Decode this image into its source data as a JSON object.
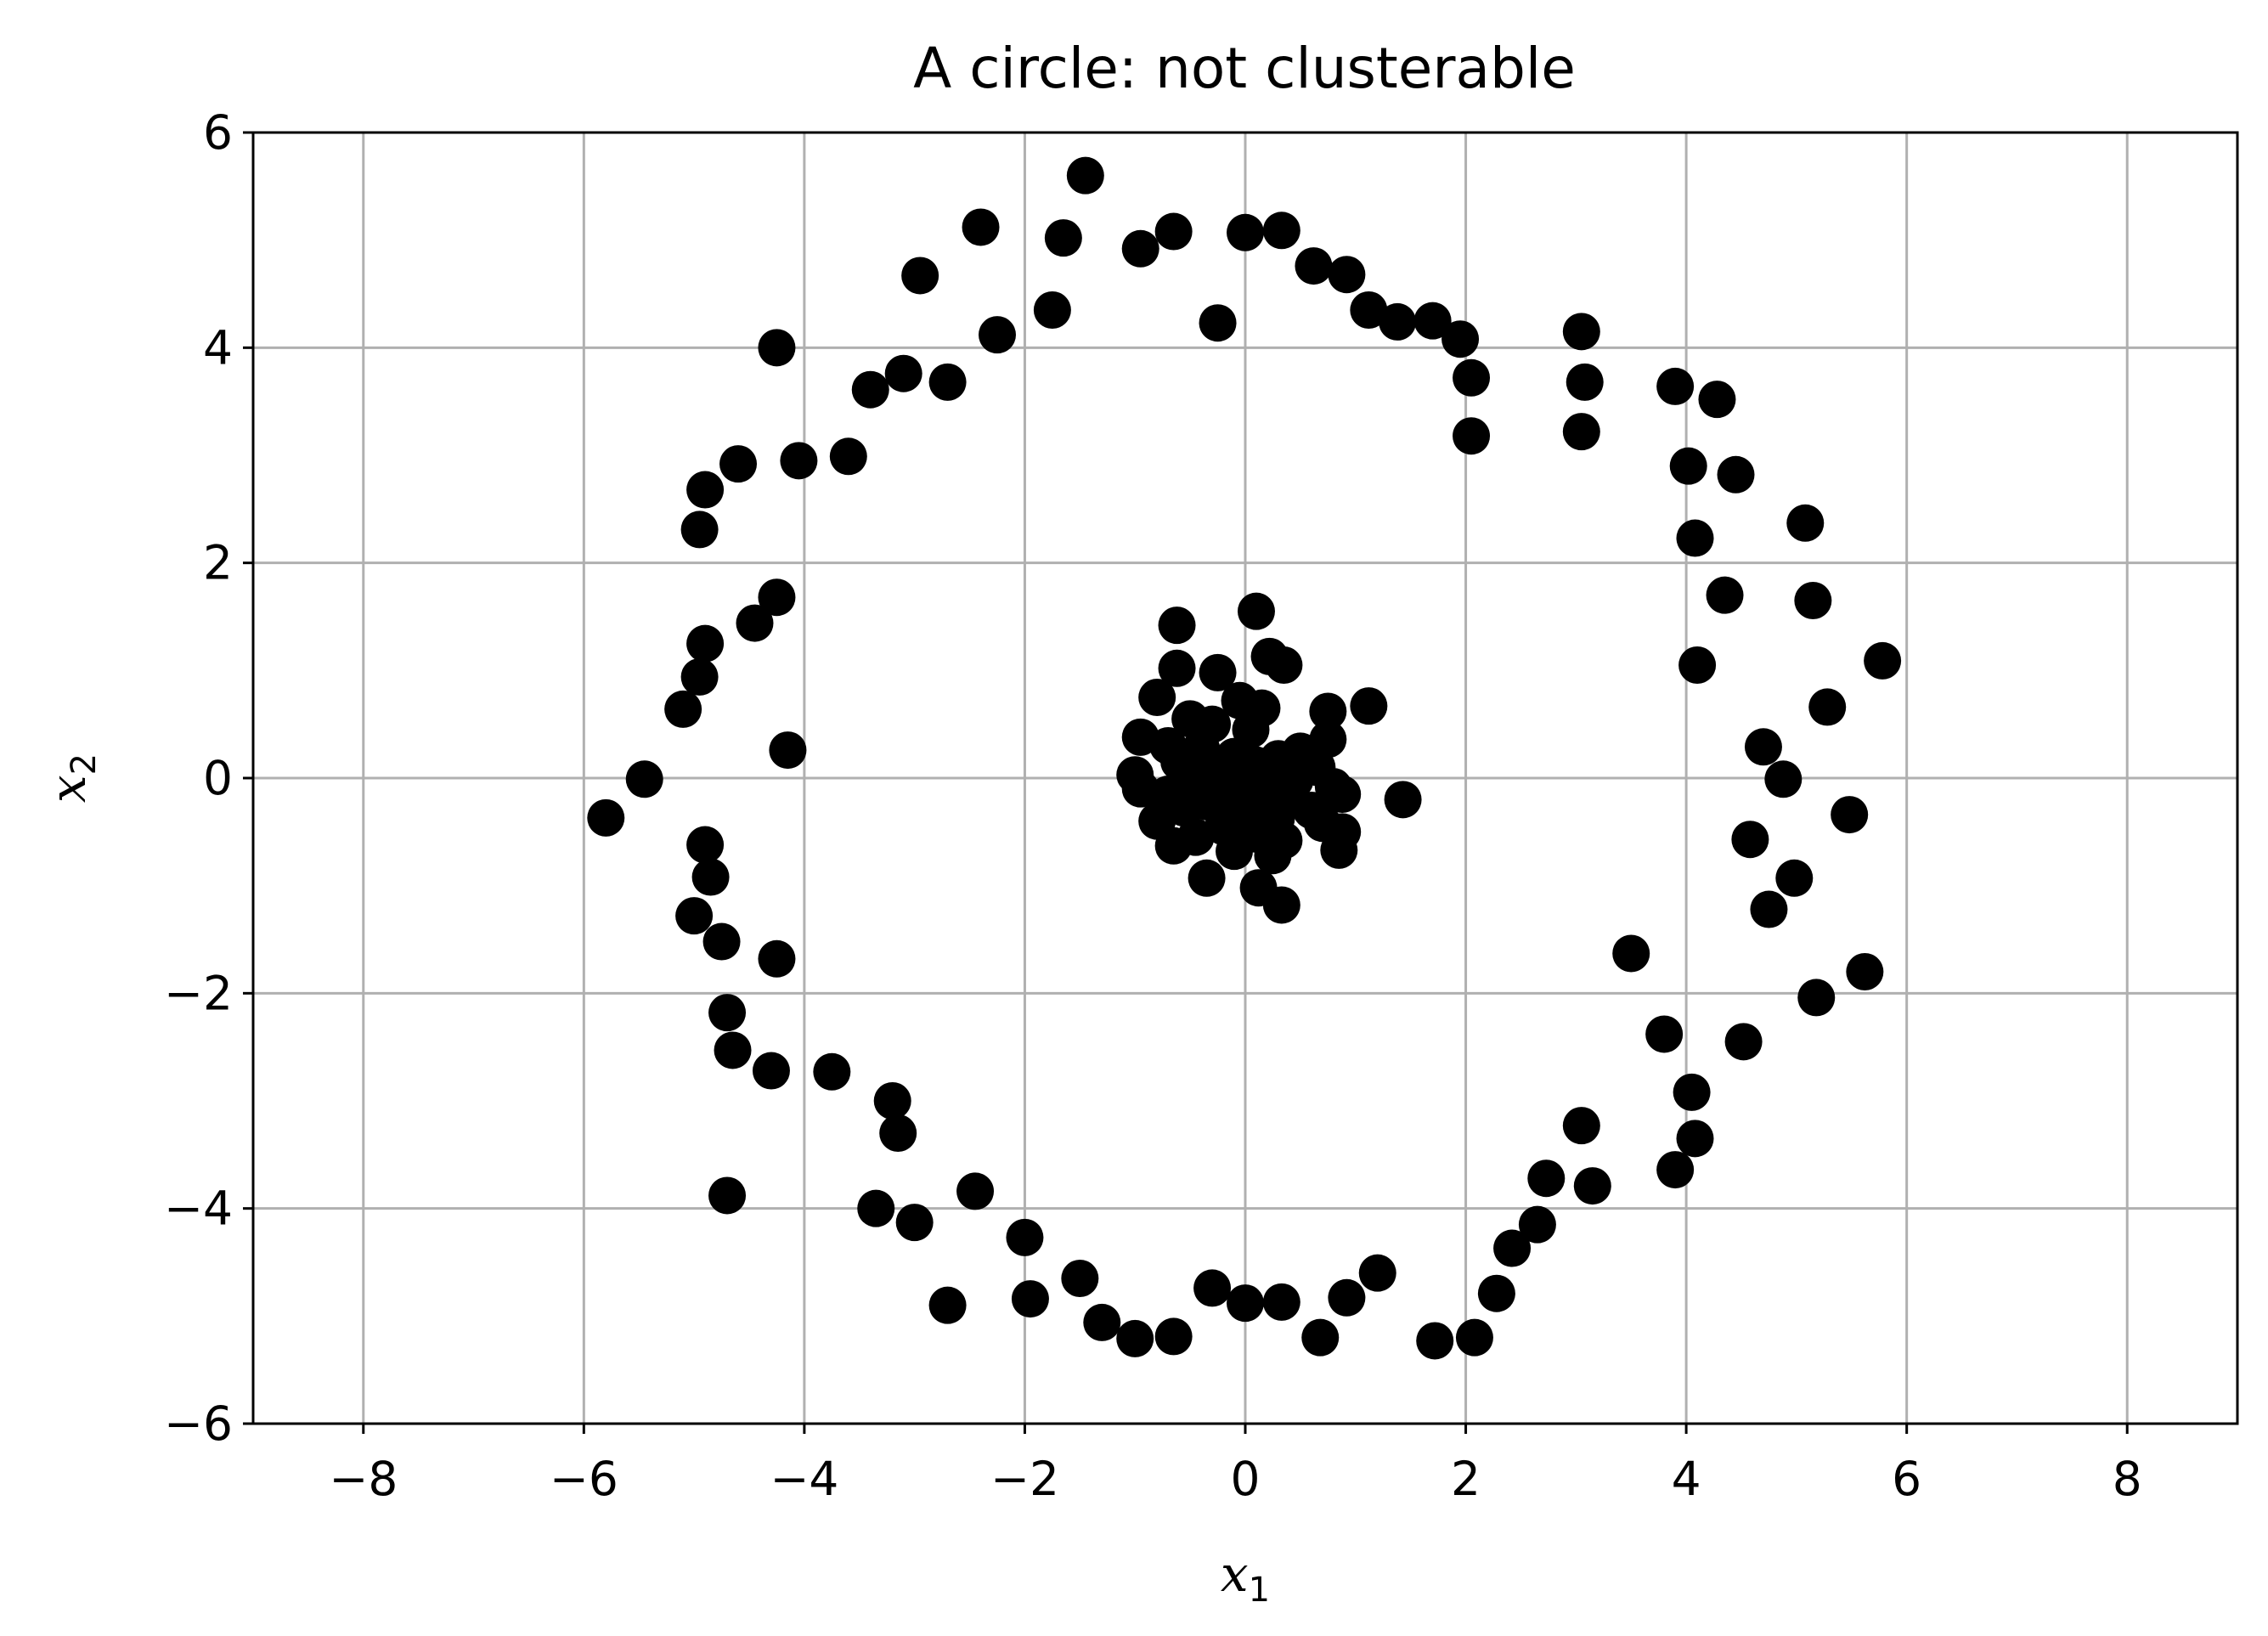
{
  "chart_data": {
    "type": "scatter",
    "title": "A circle: not clusterable",
    "xlabel": {
      "base": "x",
      "sub": "1"
    },
    "ylabel": {
      "base": "x",
      "sub": "2"
    },
    "xlim": [
      -9,
      9
    ],
    "ylim": [
      -6,
      6
    ],
    "xticks": [
      -8,
      -6,
      -4,
      -2,
      0,
      2,
      4,
      6,
      8
    ],
    "yticks": [
      -6,
      -4,
      -2,
      0,
      2,
      4,
      6
    ],
    "xtick_labels": [
      "−8",
      "−6",
      "−4",
      "−2",
      "0",
      "2",
      "4",
      "6",
      "8"
    ],
    "ytick_labels": [
      "−6",
      "−4",
      "−2",
      "0",
      "2",
      "4",
      "6"
    ],
    "grid": true,
    "marker_color": "#000000",
    "grid_color": "#b0b0b0",
    "series": [
      {
        "points": [
          [
            -1.45,
            5.6
          ],
          [
            -2.4,
            5.12
          ],
          [
            -1.65,
            5.02
          ],
          [
            -0.65,
            5.08
          ],
          [
            -0.95,
            4.92
          ],
          [
            0.0,
            5.07
          ],
          [
            0.33,
            5.09
          ],
          [
            -2.95,
            4.67
          ],
          [
            0.62,
            4.76
          ],
          [
            0.92,
            4.68
          ],
          [
            -1.75,
            4.35
          ],
          [
            -0.25,
            4.23
          ],
          [
            1.12,
            4.35
          ],
          [
            1.38,
            4.24
          ],
          [
            1.7,
            4.25
          ],
          [
            1.95,
            4.08
          ],
          [
            -2.25,
            4.12
          ],
          [
            -4.25,
            4.0
          ],
          [
            -3.1,
            3.76
          ],
          [
            -2.7,
            3.68
          ],
          [
            -3.4,
            3.61
          ],
          [
            2.05,
            3.72
          ],
          [
            3.05,
            4.15
          ],
          [
            3.08,
            3.68
          ],
          [
            3.9,
            3.64
          ],
          [
            4.28,
            3.52
          ],
          [
            2.05,
            3.18
          ],
          [
            3.05,
            3.22
          ],
          [
            -3.6,
            2.99
          ],
          [
            -4.05,
            2.95
          ],
          [
            -4.6,
            2.92
          ],
          [
            -4.9,
            2.68
          ],
          [
            -4.95,
            2.31
          ],
          [
            4.02,
            2.9
          ],
          [
            4.45,
            2.82
          ],
          [
            5.08,
            2.37
          ],
          [
            4.08,
            2.23
          ],
          [
            4.35,
            1.7
          ],
          [
            5.15,
            1.65
          ],
          [
            -4.25,
            1.68
          ],
          [
            -4.45,
            1.44
          ],
          [
            -4.9,
            1.25
          ],
          [
            -4.95,
            0.94
          ],
          [
            5.78,
            1.09
          ],
          [
            4.1,
            1.05
          ],
          [
            -5.1,
            0.64
          ],
          [
            5.28,
            0.66
          ],
          [
            4.7,
            0.29
          ],
          [
            -4.15,
            0.26
          ],
          [
            -5.45,
            -0.01
          ],
          [
            4.88,
            -0.01
          ],
          [
            -5.8,
            -0.37
          ],
          [
            5.48,
            -0.34
          ],
          [
            -4.9,
            -0.62
          ],
          [
            4.58,
            -0.57
          ],
          [
            -4.85,
            -0.92
          ],
          [
            4.98,
            -0.93
          ],
          [
            -5.0,
            -1.28
          ],
          [
            4.75,
            -1.22
          ],
          [
            -4.75,
            -1.52
          ],
          [
            3.5,
            -1.63
          ],
          [
            -4.25,
            -1.68
          ],
          [
            5.62,
            -1.8
          ],
          [
            5.18,
            -2.04
          ],
          [
            -4.7,
            -2.18
          ],
          [
            3.8,
            -2.38
          ],
          [
            4.52,
            -2.45
          ],
          [
            -4.65,
            -2.53
          ],
          [
            -4.3,
            -2.72
          ],
          [
            -3.75,
            -2.73
          ],
          [
            4.05,
            -2.92
          ],
          [
            -3.2,
            -3.0
          ],
          [
            3.05,
            -3.23
          ],
          [
            -3.15,
            -3.3
          ],
          [
            4.08,
            -3.35
          ],
          [
            3.9,
            -3.64
          ],
          [
            2.73,
            -3.72
          ],
          [
            3.15,
            -3.79
          ],
          [
            -4.7,
            -3.88
          ],
          [
            -2.45,
            -3.84
          ],
          [
            -3.35,
            -4.0
          ],
          [
            -3.0,
            -4.13
          ],
          [
            2.65,
            -4.15
          ],
          [
            -2.0,
            -4.27
          ],
          [
            2.42,
            -4.37
          ],
          [
            -1.5,
            -4.65
          ],
          [
            1.2,
            -4.6
          ],
          [
            -0.3,
            -4.74
          ],
          [
            2.28,
            -4.79
          ],
          [
            -1.95,
            -4.84
          ],
          [
            0.92,
            -4.83
          ],
          [
            0.0,
            -4.88
          ],
          [
            0.33,
            -4.87
          ],
          [
            -2.7,
            -4.9
          ],
          [
            -1.3,
            -5.06
          ],
          [
            -1.0,
            -5.21
          ],
          [
            -0.65,
            -5.19
          ],
          [
            0.68,
            -5.2
          ],
          [
            1.72,
            -5.23
          ],
          [
            2.08,
            -5.2
          ],
          [
            0.1,
            1.55
          ],
          [
            -0.62,
            1.42
          ],
          [
            0.22,
            1.13
          ],
          [
            0.35,
            1.05
          ],
          [
            -0.62,
            1.02
          ],
          [
            -0.25,
            0.98
          ],
          [
            -0.8,
            0.75
          ],
          [
            -0.05,
            0.72
          ],
          [
            1.12,
            0.67
          ],
          [
            0.15,
            0.65
          ],
          [
            0.75,
            0.62
          ],
          [
            -0.5,
            0.55
          ],
          [
            -0.3,
            0.5
          ],
          [
            0.05,
            0.45
          ],
          [
            -0.95,
            0.38
          ],
          [
            0.75,
            0.36
          ],
          [
            -0.7,
            0.3
          ],
          [
            -0.4,
            0.28
          ],
          [
            0.5,
            0.25
          ],
          [
            -0.1,
            0.2
          ],
          [
            0.3,
            0.18
          ],
          [
            -0.6,
            0.15
          ],
          [
            0.1,
            0.12
          ],
          [
            0.65,
            0.1
          ],
          [
            -0.3,
            0.05
          ],
          [
            -1.0,
            0.03
          ],
          [
            0.2,
            0.02
          ],
          [
            -0.5,
            0.0
          ],
          [
            0.45,
            -0.02
          ],
          [
            -0.15,
            -0.05
          ],
          [
            0.8,
            -0.08
          ],
          [
            -0.95,
            -0.1
          ],
          [
            0.05,
            -0.12
          ],
          [
            -0.7,
            -0.15
          ],
          [
            0.88,
            -0.15
          ],
          [
            0.35,
            -0.18
          ],
          [
            1.43,
            -0.2
          ],
          [
            -0.35,
            -0.22
          ],
          [
            0.15,
            -0.25
          ],
          [
            -0.55,
            -0.28
          ],
          [
            0.6,
            -0.3
          ],
          [
            -0.1,
            -0.32
          ],
          [
            0.28,
            -0.38
          ],
          [
            -0.8,
            -0.4
          ],
          [
            0.7,
            -0.42
          ],
          [
            -0.2,
            -0.45
          ],
          [
            0.88,
            -0.5
          ],
          [
            0.1,
            -0.52
          ],
          [
            -0.45,
            -0.55
          ],
          [
            0.35,
            -0.58
          ],
          [
            -0.65,
            -0.63
          ],
          [
            0.85,
            -0.67
          ],
          [
            -0.1,
            -0.68
          ],
          [
            0.25,
            -0.72
          ],
          [
            -0.35,
            -0.93
          ],
          [
            0.12,
            -1.02
          ],
          [
            0.33,
            -1.18
          ]
        ]
      }
    ]
  }
}
